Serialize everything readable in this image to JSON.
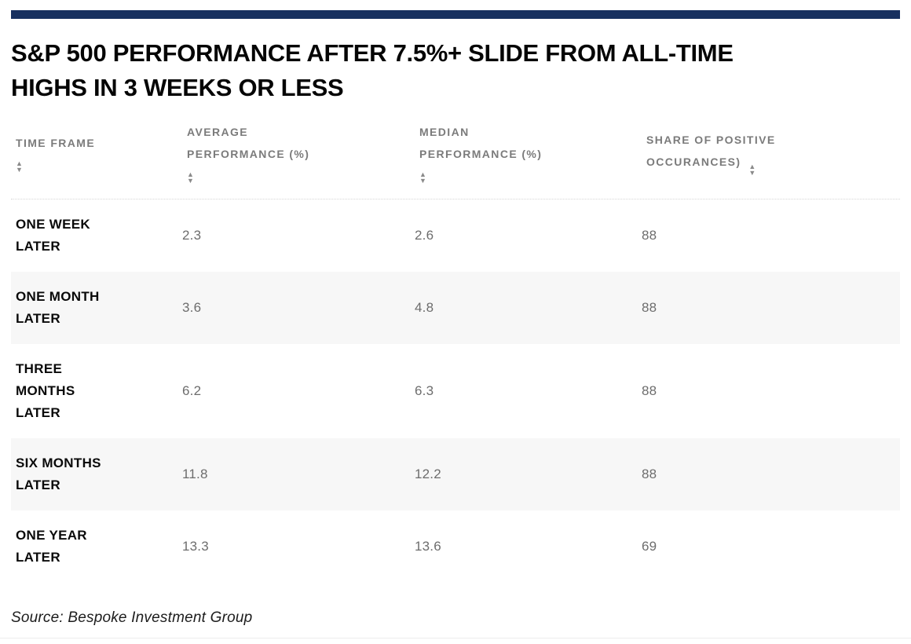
{
  "page": {
    "title": "S&P 500 PERFORMANCE AFTER 7.5%+ SLIDE FROM ALL-TIME\nHIGHS IN 3 WEEKS OR LESS",
    "source": "Source: Bespoke Investment Group"
  },
  "colors": {
    "accent_bar": "#17305f",
    "header_text": "#7b7b7b",
    "value_text": "#6d6d6d",
    "row_label_text": "#0a0a0a",
    "row_alt_bg": "#f7f7f7"
  },
  "icons": {
    "sort_up": "▲",
    "sort_down": "▼"
  },
  "table": {
    "columns": [
      {
        "label": "TIME FRAME"
      },
      {
        "label": "AVERAGE\nPERFORMANCE (%)"
      },
      {
        "label": "MEDIAN\nPERFORMANCE (%)"
      },
      {
        "label": "SHARE OF POSITIVE\nOCCURANCES)"
      }
    ],
    "rows": [
      {
        "time_frame": "ONE WEEK\nLATER",
        "average": "2.3",
        "median": "2.6",
        "share_positive": "88"
      },
      {
        "time_frame": "ONE MONTH\nLATER",
        "average": "3.6",
        "median": "4.8",
        "share_positive": "88"
      },
      {
        "time_frame": "THREE\nMONTHS\nLATER",
        "average": "6.2",
        "median": "6.3",
        "share_positive": "88"
      },
      {
        "time_frame": "SIX MONTHS\nLATER",
        "average": "11.8",
        "median": "12.2",
        "share_positive": "88"
      },
      {
        "time_frame": "ONE YEAR\nLATER",
        "average": "13.3",
        "median": "13.6",
        "share_positive": "69"
      }
    ]
  },
  "chart_data": {
    "type": "table",
    "title": "S&P 500 PERFORMANCE AFTER 7.5%+ SLIDE FROM ALL-TIME HIGHS IN 3 WEEKS OR LESS",
    "columns": [
      "TIME FRAME",
      "AVERAGE PERFORMANCE (%)",
      "MEDIAN PERFORMANCE (%)",
      "SHARE OF POSITIVE OCCURANCES)"
    ],
    "rows": [
      [
        "ONE WEEK LATER",
        2.3,
        2.6,
        88
      ],
      [
        "ONE MONTH LATER",
        3.6,
        4.8,
        88
      ],
      [
        "THREE MONTHS LATER",
        6.2,
        6.3,
        88
      ],
      [
        "SIX MONTHS LATER",
        11.8,
        12.2,
        88
      ],
      [
        "ONE YEAR LATER",
        13.3,
        13.6,
        69
      ]
    ],
    "source": "Source: Bespoke Investment Group"
  }
}
